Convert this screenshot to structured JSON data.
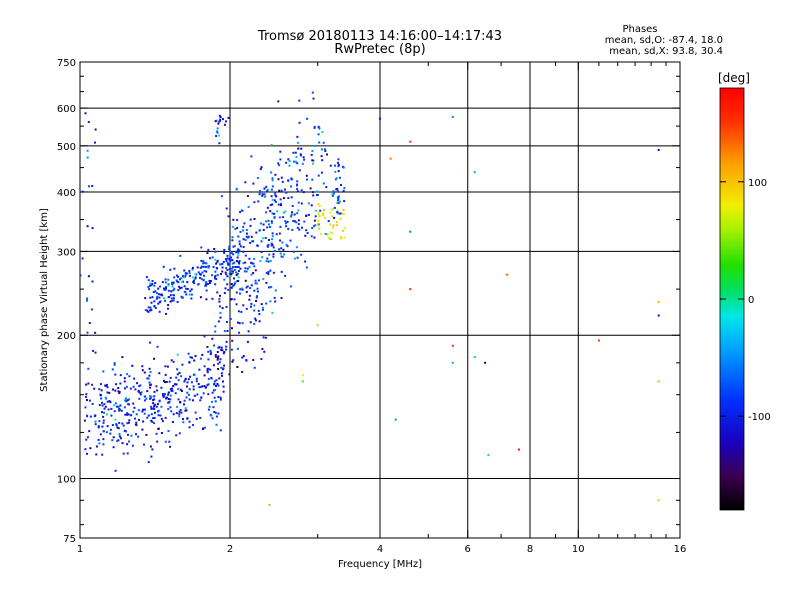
{
  "chart_data": {
    "type": "scatter",
    "title": "Tromsø 20180113 14:16:00–14:17:43",
    "subtitle": "RwPretec (8p)",
    "legend_header": "Phases",
    "legend_line1": "mean, sd,O: -87.4, 18.0",
    "legend_line2": "mean, sd,X:  93.8, 30.4",
    "xlabel": "Frequency [MHz]",
    "ylabel": "Stationary phase Virtual Height [km]",
    "xscale": "log",
    "yscale": "log",
    "xlim": [
      1,
      16
    ],
    "ylim": [
      75,
      750
    ],
    "xticks": [
      1,
      2,
      4,
      6,
      8,
      10,
      16
    ],
    "xtick_labels": [
      "1",
      "2",
      "4",
      "6",
      "8",
      "10",
      "16"
    ],
    "yticks": [
      75,
      100,
      200,
      300,
      400,
      500,
      600,
      750
    ],
    "ytick_labels": [
      "75",
      "100",
      "200",
      "300",
      "400",
      "500",
      "600",
      "750"
    ],
    "x_gridlines": [
      2,
      4,
      6,
      8,
      10
    ],
    "y_gridlines": [
      100,
      200,
      300,
      400,
      500,
      600
    ],
    "colorbar": {
      "label": "[deg]",
      "range": [
        -180,
        180
      ],
      "tick_values": [
        100,
        0,
        -100
      ],
      "tick_labels": [
        "100",
        "0",
        "-100"
      ],
      "colormap": "rainbow (black-purple-blue-cyan-green-yellow-orange-red)"
    },
    "clusters": [
      {
        "name": "",
        "phase": -100,
        "x_range": [
          1.0,
          2.0
        ],
        "y_center": 140,
        "count": 450
      },
      {
        "name": "",
        "phase": -95,
        "x_range": [
          1.35,
          2.05
        ],
        "y_center": 250,
        "count": 260
      },
      {
        "name": "",
        "phase": -90,
        "x_range": [
          2.0,
          3.0
        ],
        "y_center": 320,
        "count": 380
      },
      {
        "name": "",
        "phase": 90,
        "x_range": [
          3.0,
          3.5
        ],
        "y_center": 340,
        "count": 40
      }
    ],
    "points": [
      {
        "x": 2.4,
        "y": 88,
        "phase": 110
      },
      {
        "x": 4.6,
        "y": 510,
        "phase": 150
      },
      {
        "x": 4.2,
        "y": 470,
        "phase": 130
      },
      {
        "x": 4.6,
        "y": 330,
        "phase": -60
      },
      {
        "x": 4.6,
        "y": 250,
        "phase": 150
      },
      {
        "x": 4.0,
        "y": 570,
        "phase": -110
      },
      {
        "x": 5.6,
        "y": 575,
        "phase": -60
      },
      {
        "x": 5.6,
        "y": 190,
        "phase": 150
      },
      {
        "x": 5.6,
        "y": 175,
        "phase": -40
      },
      {
        "x": 6.2,
        "y": 440,
        "phase": -40
      },
      {
        "x": 6.2,
        "y": 180,
        "phase": -30
      },
      {
        "x": 6.5,
        "y": 175,
        "phase": -150
      },
      {
        "x": 6.6,
        "y": 112,
        "phase": -30
      },
      {
        "x": 7.2,
        "y": 268,
        "phase": 140
      },
      {
        "x": 7.6,
        "y": 115,
        "phase": 170
      },
      {
        "x": 4.3,
        "y": 133,
        "phase": -50
      },
      {
        "x": 11,
        "y": 195,
        "phase": 150
      },
      {
        "x": 14.5,
        "y": 490,
        "phase": -120
      },
      {
        "x": 14.5,
        "y": 235,
        "phase": 110
      },
      {
        "x": 14.5,
        "y": 220,
        "phase": -130
      },
      {
        "x": 14.5,
        "y": 160,
        "phase": 110
      },
      {
        "x": 14.5,
        "y": 90,
        "phase": 100
      },
      {
        "x": 2.8,
        "y": 165,
        "phase": 80
      },
      {
        "x": 2.8,
        "y": 160,
        "phase": 40
      },
      {
        "x": 3.0,
        "y": 210,
        "phase": 100
      },
      {
        "x": 2.5,
        "y": 620,
        "phase": -140
      }
    ]
  }
}
